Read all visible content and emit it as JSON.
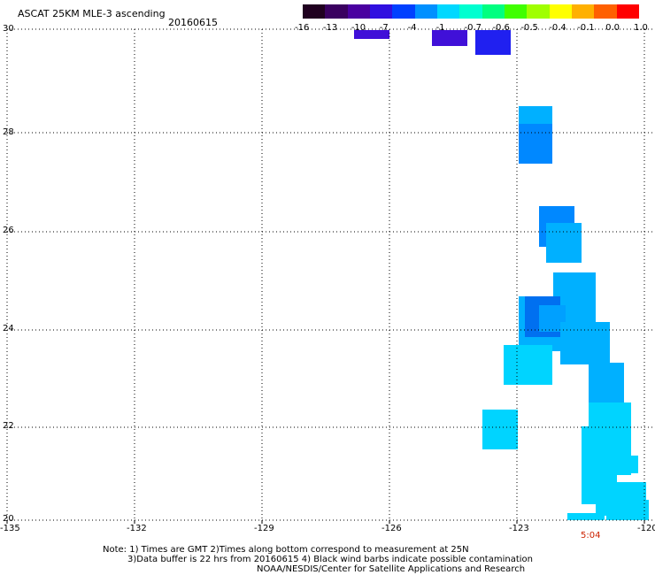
{
  "header": {
    "title": "ASCAT 25KM MLE-3 ascending",
    "date": "20160615"
  },
  "colorbar": {
    "colors": [
      "#200020",
      "#3a0060",
      "#4a00a0",
      "#3010e0",
      "#0040ff",
      "#0090ff",
      "#00d8ff",
      "#00ffd0",
      "#00ff80",
      "#40ff00",
      "#a0ff00",
      "#ffff00",
      "#ffb000",
      "#ff6000",
      "#ff0000"
    ],
    "labels": [
      "-16",
      "-13",
      "-10",
      "-7",
      "-4",
      "-1",
      "-0.7",
      "-0.6",
      "-0.5",
      "-0.4",
      "-0.1",
      "0.0",
      "1.0"
    ]
  },
  "map": {
    "lat_labels": [
      "30",
      "28",
      "26",
      "24",
      "22",
      "20"
    ],
    "lon_labels": [
      "-135",
      "-132",
      "-129",
      "-126",
      "-123",
      "-120"
    ],
    "time_label": "5:04",
    "time_color": "#cc2200",
    "lat_range": [
      20,
      30
    ],
    "lon_range": [
      -135,
      -120
    ]
  },
  "footer": {
    "line1": "Note: 1) Times are GMT 2)Times along bottom correspond to measurement at 25N",
    "line2": "3)Data buffer is 22 hrs from 20160615 4) Black wind barbs indicate possible contamination",
    "line3": "NOAA/NESDIS/Center for Satellite Applications and Research"
  },
  "data_colors": {
    "violet": "#4010d8",
    "blue": "#2020f0",
    "mid_blue": "#0088ff",
    "light_blue": "#00b0ff",
    "cyan": "#00d4ff"
  }
}
